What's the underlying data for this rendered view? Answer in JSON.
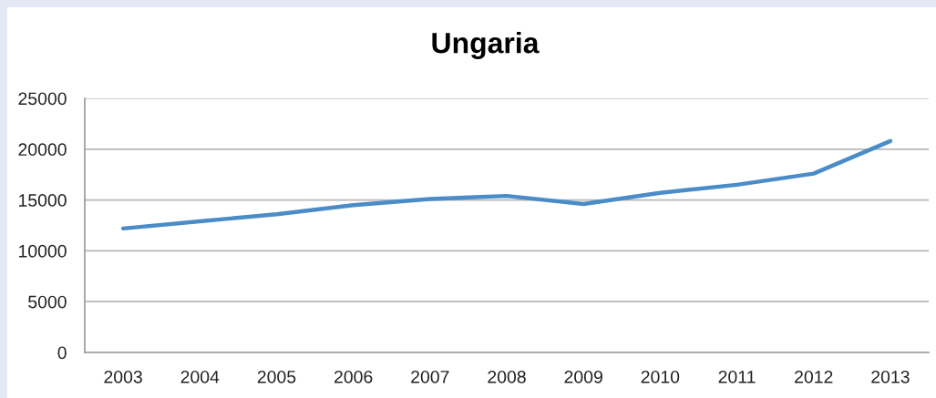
{
  "chart_data": {
    "type": "line",
    "title": "Ungaria",
    "categories": [
      "2003",
      "2004",
      "2005",
      "2006",
      "2007",
      "2008",
      "2009",
      "2010",
      "2011",
      "2012",
      "2013"
    ],
    "series": [
      {
        "color": "#4a8cc8",
        "values": [
          12200,
          12900,
          13600,
          14500,
          15100,
          15400,
          14600,
          15700,
          16500,
          17600,
          20800
        ]
      }
    ],
    "ylim": [
      0,
      25000
    ],
    "yticks": [
      0,
      5000,
      10000,
      15000,
      20000,
      25000
    ],
    "grid": "y",
    "line_style": "solid"
  }
}
